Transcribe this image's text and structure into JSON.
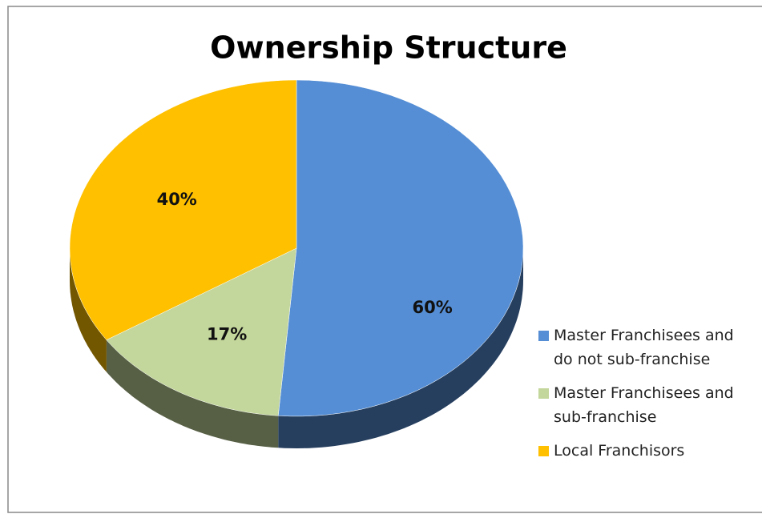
{
  "chart_data": {
    "type": "pie",
    "title": "Ownership Structure",
    "categories": [
      "Master Franchisees and do not sub-franchise",
      "Master Franchisees and sub-franchise",
      "Local Franchisors"
    ],
    "values": [
      60,
      17,
      40
    ],
    "value_labels": [
      "60%",
      "17%",
      "40%"
    ],
    "colors": [
      "#558ed5",
      "#c3d69b",
      "#ffc000"
    ],
    "legend": "right"
  }
}
